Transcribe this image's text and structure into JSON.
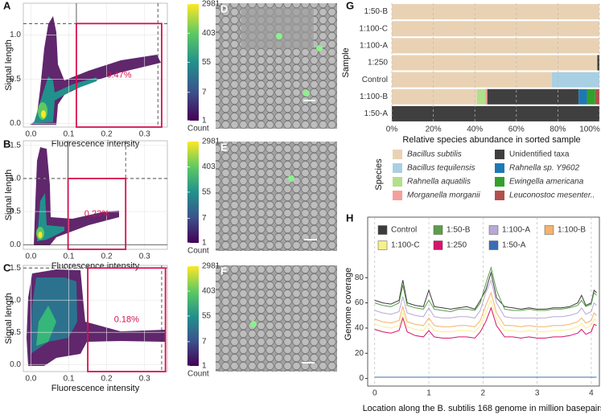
{
  "chart_data": [
    {
      "type": "scatter",
      "panel": "A",
      "xlabel": "Fluorescence intensity",
      "ylabel": "Signal length",
      "xlim": [
        -0.02,
        0.36
      ],
      "ylim": [
        -0.04,
        1.36
      ],
      "xticks": [
        {
          "value": 0,
          "label": "0.0"
        },
        {
          "value": 0.1,
          "label": "0.1"
        },
        {
          "value": 0.2,
          "label": "0.2"
        },
        {
          "value": 0.3,
          "label": "0.3"
        }
      ],
      "yticks": [
        {
          "value": 0,
          "label": "0.0"
        },
        {
          "value": 0.5,
          "label": "0.5"
        },
        {
          "value": 1,
          "label": "1.0"
        }
      ],
      "gate": {
        "x": [
          0.12,
          0.345
        ],
        "y": [
          -0.04,
          1.13
        ]
      },
      "gate_label": "0.47%",
      "gate_color": "#d6134e",
      "lines": [
        {
          "x": 0.12,
          "style": "solid"
        },
        {
          "x": 0.335,
          "style": "dashed"
        },
        {
          "y": 1.13,
          "style": "dashed"
        }
      ],
      "colorbar": {
        "label": "Count",
        "lim": [
          1,
          2981
        ],
        "ticks": [
          1,
          7,
          55,
          403,
          2981
        ],
        "log": true
      }
    },
    {
      "type": "scatter",
      "panel": "B",
      "xlabel": "Fluorescence intensity",
      "ylabel": "Signal length",
      "xlim": [
        -0.02,
        0.36
      ],
      "ylim": [
        -0.07,
        1.57
      ],
      "xticks": [
        {
          "value": 0,
          "label": "0.0"
        },
        {
          "value": 0.1,
          "label": "0.1"
        },
        {
          "value": 0.2,
          "label": "0.2"
        },
        {
          "value": 0.3,
          "label": "0.3"
        }
      ],
      "yticks": [
        {
          "value": 0,
          "label": "0.0"
        },
        {
          "value": 0.5,
          "label": "0.5"
        },
        {
          "value": 1,
          "label": "1.0"
        },
        {
          "value": 1.5,
          "label": "1.5"
        }
      ],
      "gate": {
        "x": [
          0.098,
          0.25
        ],
        "y": [
          -0.07,
          1.0
        ]
      },
      "gate_label": "0.23%",
      "gate_color": "#d6134e",
      "lines": [
        {
          "x": 0.098,
          "style": "solid"
        },
        {
          "x": 0.25,
          "style": "dashed"
        },
        {
          "y": 1.0,
          "style": "dashed"
        },
        {
          "y": 0,
          "style": "solid"
        }
      ],
      "colorbar": {
        "label": "Count",
        "lim": [
          1,
          2981
        ],
        "ticks": [
          1,
          7,
          55,
          403,
          2981
        ],
        "log": true
      }
    },
    {
      "type": "scatter",
      "panel": "C",
      "xlabel": "Fluorescence intensity",
      "ylabel": "Signal length",
      "xlim": [
        -0.02,
        0.36
      ],
      "ylim": [
        -0.11,
        1.54
      ],
      "xticks": [
        {
          "value": 0,
          "label": "0.0"
        },
        {
          "value": 0.1,
          "label": "0.1"
        },
        {
          "value": 0.2,
          "label": "0.2"
        },
        {
          "value": 0.3,
          "label": "0.3"
        }
      ],
      "yticks": [
        {
          "value": 0,
          "label": "0.0"
        },
        {
          "value": 0.5,
          "label": "0.5"
        },
        {
          "value": 1,
          "label": "1.0"
        },
        {
          "value": 1.5,
          "label": "1.5"
        }
      ],
      "gate": {
        "x": [
          0.15,
          0.355
        ],
        "y": [
          -0.11,
          1.5
        ]
      },
      "gate_label": "0.18%",
      "gate_color": "#d6134e",
      "lines": [
        {
          "x": 0.15,
          "style": "solid"
        },
        {
          "x": 0.345,
          "style": "dashed"
        },
        {
          "y": 1.5,
          "style": "dashed"
        }
      ],
      "colorbar": {
        "label": "Count",
        "lim": [
          1,
          2981
        ],
        "ticks": [
          1,
          7,
          55,
          403,
          2981
        ],
        "log": true
      }
    },
    {
      "type": "stacked-barh",
      "panel": "G",
      "xlabel": "Relative species abundance in sorted sample",
      "ylabel": "Sample",
      "legend_title": "Species",
      "categories": [
        "1:50-B",
        "1:100-C",
        "1:100-A",
        "1:250",
        "Control",
        "1:100-B",
        "1:50-A"
      ],
      "xlim": [
        0,
        100
      ],
      "xticks": [
        {
          "value": 0,
          "label": "0%"
        },
        {
          "value": 20,
          "label": "20%"
        },
        {
          "value": 40,
          "label": "40%"
        },
        {
          "value": 60,
          "label": "60%"
        },
        {
          "value": 80,
          "label": "80%"
        },
        {
          "value": 100,
          "label": "100%"
        }
      ],
      "grid": true,
      "series": [
        {
          "name": "Bacillus subtilis",
          "color": "#e9d2b4",
          "values": [
            100,
            100,
            100,
            99,
            77,
            41,
            0
          ]
        },
        {
          "name": "Bacillus tequilensis",
          "color": "#a9cfe3",
          "values": [
            0,
            0,
            0,
            0,
            23,
            0,
            0
          ]
        },
        {
          "name": "Rahnella aquatilis",
          "color": "#b2df8a",
          "values": [
            0,
            0,
            0,
            0,
            0,
            4,
            0
          ]
        },
        {
          "name": "Morganella morganii",
          "color": "#f5a09c",
          "values": [
            0,
            0,
            0,
            0,
            0,
            1,
            0
          ]
        },
        {
          "name": "Unidentified taxa",
          "color": "#3f3f3f",
          "values": [
            0,
            0,
            0,
            1,
            0,
            44,
            100
          ]
        },
        {
          "name": "Rahnella sp. Y9602",
          "color": "#1f78b4",
          "values": [
            0,
            0,
            0,
            0,
            0,
            4,
            0
          ]
        },
        {
          "name": "Ewingella americana",
          "color": "#33a02c",
          "values": [
            0,
            0,
            0,
            0,
            0,
            4,
            0
          ]
        },
        {
          "name": "Leuconostoc mesenter..",
          "color": "#b0514d",
          "values": [
            0,
            0,
            0,
            0,
            0,
            2,
            0
          ]
        }
      ]
    },
    {
      "type": "line",
      "panel": "H",
      "xlabel": "Location along the B. subtilis 168 genome in million basepairs",
      "ylabel": "Genome coverage",
      "x": [
        0,
        0.15,
        0.3,
        0.45,
        0.52,
        0.6,
        0.75,
        0.9,
        1.0,
        1.1,
        1.25,
        1.4,
        1.55,
        1.7,
        1.85,
        1.95,
        2.05,
        2.15,
        2.25,
        2.4,
        2.55,
        2.7,
        2.85,
        3.0,
        3.15,
        3.3,
        3.45,
        3.6,
        3.75,
        3.82,
        3.9,
        4.0,
        4.05,
        4.1
      ],
      "xlim": [
        -0.13,
        4.15
      ],
      "ylim": [
        -6,
        128
      ],
      "xticks": [
        0,
        1,
        2,
        3,
        4
      ],
      "yticks": [
        0,
        20,
        40,
        60,
        80
      ],
      "grid": true,
      "series": [
        {
          "name": "Control",
          "color": "#3c3c3c",
          "values": [
            62,
            60,
            59,
            62,
            78,
            60,
            58,
            57,
            70,
            57,
            56,
            55,
            56,
            57,
            55,
            62,
            70,
            84,
            64,
            57,
            56,
            55,
            56,
            55,
            55,
            56,
            56,
            57,
            60,
            66,
            58,
            60,
            70,
            68
          ]
        },
        {
          "name": "1:50-B",
          "color": "#5a9e4b",
          "values": [
            60,
            58,
            57,
            60,
            74,
            58,
            56,
            55,
            62,
            55,
            54,
            53,
            55,
            55,
            54,
            60,
            75,
            88,
            70,
            55,
            54,
            54,
            55,
            54,
            54,
            55,
            55,
            56,
            58,
            62,
            57,
            59,
            68,
            66
          ]
        },
        {
          "name": "1:100-A",
          "color": "#b9a8d6",
          "values": [
            54,
            52,
            51,
            53,
            65,
            52,
            50,
            49,
            56,
            49,
            48,
            48,
            49,
            49,
            48,
            54,
            68,
            78,
            60,
            49,
            48,
            48,
            48,
            48,
            48,
            49,
            49,
            50,
            52,
            56,
            51,
            53,
            60,
            58
          ]
        },
        {
          "name": "1:100-B",
          "color": "#f2b36c",
          "values": [
            47,
            45,
            44,
            46,
            57,
            45,
            43,
            42,
            48,
            42,
            41,
            41,
            42,
            42,
            41,
            46,
            58,
            68,
            52,
            42,
            42,
            41,
            42,
            41,
            41,
            42,
            42,
            43,
            45,
            48,
            44,
            46,
            52,
            50
          ]
        },
        {
          "name": "1:100-C",
          "color": "#f7f08a",
          "values": [
            43,
            41,
            40,
            42,
            52,
            41,
            39,
            38,
            44,
            38,
            37,
            37,
            38,
            38,
            37,
            42,
            52,
            62,
            47,
            38,
            38,
            37,
            38,
            37,
            37,
            38,
            38,
            39,
            41,
            44,
            40,
            42,
            47,
            46
          ]
        },
        {
          "name": "1:250",
          "color": "#d6136b",
          "values": [
            39,
            37,
            36,
            38,
            48,
            37,
            34,
            33,
            38,
            33,
            32,
            32,
            33,
            33,
            32,
            37,
            45,
            56,
            42,
            33,
            33,
            32,
            33,
            32,
            32,
            33,
            33,
            34,
            36,
            39,
            35,
            37,
            43,
            42
          ]
        },
        {
          "name": "1:50-A",
          "color": "#3b6db4",
          "values": [
            1,
            1,
            1,
            1,
            1,
            1,
            1,
            1,
            1,
            1,
            1,
            1,
            1,
            1,
            1,
            1,
            1,
            1,
            1,
            1,
            1,
            1,
            1,
            1,
            1,
            1,
            1,
            1,
            1,
            1,
            1,
            1,
            1,
            1
          ]
        }
      ]
    }
  ],
  "images": [
    {
      "panel": "D"
    },
    {
      "panel": "E"
    },
    {
      "panel": "F"
    }
  ]
}
